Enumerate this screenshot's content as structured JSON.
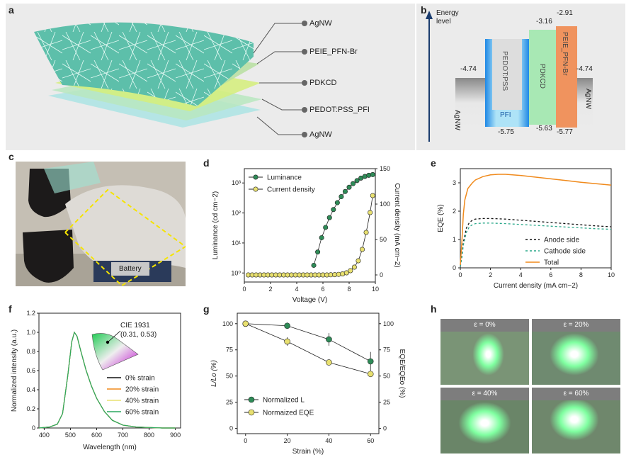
{
  "panels": {
    "a": "a",
    "b": "b",
    "c": "c",
    "d": "d",
    "e": "e",
    "f": "f",
    "g": "g",
    "h": "h"
  },
  "panel_a": {
    "layers": [
      "AgNW",
      "PEIE_PFN-Br",
      "PDKCD",
      "PEDOT:PSS_PFI",
      "AgNW"
    ]
  },
  "panel_b": {
    "axis_label_1": "Energy",
    "axis_label_2": "level",
    "left_electrode": "AgNW",
    "right_electrode": "AgNW",
    "left_wf": "-4.74",
    "right_wf": "-4.74",
    "htl": "PEDOT:PSS",
    "htl_sub": "PFI",
    "htl_bottom": "-5.75",
    "eml": "PDKCD",
    "eml_top": "-3.16",
    "eml_bottom": "-5.63",
    "etl": "PEIE_PFN-Br",
    "etl_top": "-2.91",
    "etl_bottom": "-5.77"
  },
  "panel_c": {
    "battery_label": "Battery"
  },
  "panel_h": {
    "strain_labels": [
      "ε = 0%",
      "ε = 20%",
      "ε = 40%",
      "ε = 60%"
    ]
  },
  "chart_data": [
    {
      "id": "d",
      "type": "scatter",
      "xlabel": "Voltage (V)",
      "ylabel": "Luminance (cd cm−2)",
      "y2label": "Current density (mA cm−2)",
      "xlim": [
        0,
        10
      ],
      "ylim_log": [
        0.5,
        3000
      ],
      "y2lim": [
        -10,
        150
      ],
      "xticks": [
        0,
        2,
        4,
        6,
        8,
        10
      ],
      "yticks": [
        "10⁰",
        "10¹",
        "10²",
        "10³"
      ],
      "y2ticks": [
        0,
        50,
        100,
        150
      ],
      "legend": [
        "Luminance",
        "Current density"
      ],
      "series": [
        {
          "name": "Luminance",
          "color": "#2e8b57",
          "x": [
            5.3,
            5.6,
            5.9,
            6.2,
            6.5,
            6.8,
            7.1,
            7.4,
            7.7,
            8.0,
            8.3,
            8.6,
            8.9,
            9.2,
            9.5,
            9.8
          ],
          "y": [
            1.8,
            5,
            15,
            33,
            70,
            130,
            220,
            350,
            520,
            720,
            950,
            1200,
            1450,
            1650,
            1800,
            1900
          ]
        },
        {
          "name": "Current density",
          "color": "#e8e070",
          "x": [
            0.3,
            0.6,
            0.9,
            1.2,
            1.5,
            1.8,
            2.1,
            2.4,
            2.7,
            3.0,
            3.3,
            3.6,
            3.9,
            4.2,
            4.5,
            4.8,
            5.1,
            5.4,
            5.7,
            6.0,
            6.3,
            6.6,
            6.9,
            7.2,
            7.5,
            7.8,
            8.1,
            8.4,
            8.7,
            9.0,
            9.3,
            9.6,
            9.8
          ],
          "y": [
            0,
            0,
            0,
            0,
            0,
            0,
            0,
            0,
            0,
            0,
            0,
            0,
            0,
            0,
            0,
            0,
            0,
            0,
            0,
            0,
            0,
            0.2,
            0.4,
            0.8,
            1.5,
            3,
            6,
            11,
            20,
            36,
            60,
            88,
            112
          ]
        }
      ]
    },
    {
      "id": "e",
      "type": "line",
      "xlabel": "Current density (mA cm−2)",
      "ylabel": "EQE (%)",
      "xlim": [
        0,
        10
      ],
      "ylim": [
        0,
        3.5
      ],
      "xticks": [
        0,
        2,
        4,
        6,
        8,
        10
      ],
      "yticks": [
        0,
        1,
        2,
        3
      ],
      "legend": [
        "Anode side",
        "Cathode side",
        "Total"
      ],
      "series": [
        {
          "name": "Anode side",
          "color": "#111111",
          "dash": "3,3",
          "x": [
            0,
            0.1,
            0.2,
            0.4,
            0.6,
            0.8,
            1,
            1.5,
            2,
            3,
            4,
            5,
            6,
            7,
            8,
            9,
            10
          ],
          "y": [
            0.05,
            0.4,
            0.9,
            1.4,
            1.6,
            1.68,
            1.72,
            1.74,
            1.74,
            1.72,
            1.68,
            1.64,
            1.6,
            1.56,
            1.52,
            1.48,
            1.45
          ]
        },
        {
          "name": "Cathode side",
          "color": "#2aa88a",
          "dash": "3,3",
          "x": [
            0,
            0.1,
            0.2,
            0.4,
            0.6,
            0.8,
            1,
            1.5,
            2,
            3,
            4,
            5,
            6,
            7,
            8,
            9,
            10
          ],
          "y": [
            0.05,
            0.35,
            0.8,
            1.25,
            1.45,
            1.52,
            1.56,
            1.58,
            1.58,
            1.56,
            1.53,
            1.5,
            1.47,
            1.44,
            1.41,
            1.38,
            1.36
          ]
        },
        {
          "name": "Total",
          "color": "#f08a1c",
          "dash": "",
          "x": [
            0,
            0.1,
            0.2,
            0.3,
            0.5,
            0.8,
            1,
            1.5,
            2,
            2.5,
            3,
            4,
            5,
            6,
            7,
            8,
            9,
            10
          ],
          "y": [
            0.1,
            0.9,
            1.9,
            2.4,
            2.8,
            3.0,
            3.1,
            3.22,
            3.28,
            3.3,
            3.3,
            3.26,
            3.2,
            3.14,
            3.08,
            3.02,
            2.97,
            2.92
          ]
        }
      ]
    },
    {
      "id": "f",
      "type": "line",
      "xlabel": "Wavelength (nm)",
      "ylabel": "Normalized intensity (a.u.)",
      "xlim": [
        380,
        920
      ],
      "ylim": [
        0,
        1.2
      ],
      "xticks": [
        400,
        500,
        600,
        700,
        800,
        900
      ],
      "yticks": [
        0,
        0.2,
        0.4,
        0.6,
        0.8,
        1.0,
        1.2
      ],
      "legend": [
        "0% strain",
        "20% strain",
        "40% strain",
        "60% strain"
      ],
      "cie_label": "CIE 1931",
      "cie_coords": "(0.31, 0.53)",
      "series": [
        {
          "name": "0% strain",
          "color": "#111111",
          "x": [
            380,
            420,
            450,
            470,
            490,
            505,
            515,
            525,
            540,
            560,
            580,
            600,
            630,
            660,
            700,
            750,
            800,
            850,
            900
          ],
          "y": [
            0,
            0.01,
            0.04,
            0.15,
            0.55,
            0.9,
            1.0,
            0.96,
            0.8,
            0.6,
            0.44,
            0.31,
            0.17,
            0.08,
            0.03,
            0.01,
            0.005,
            0,
            0
          ]
        },
        {
          "name": "20% strain",
          "color": "#f08a1c",
          "x": [
            380,
            420,
            450,
            470,
            490,
            505,
            515,
            525,
            540,
            560,
            580,
            600,
            630,
            660,
            700,
            750,
            800,
            850,
            900
          ],
          "y": [
            0,
            0.01,
            0.04,
            0.15,
            0.55,
            0.9,
            1.0,
            0.96,
            0.8,
            0.6,
            0.44,
            0.31,
            0.17,
            0.08,
            0.03,
            0.01,
            0.005,
            0,
            0
          ]
        },
        {
          "name": "40% strain",
          "color": "#e8e070",
          "x": [
            380,
            420,
            450,
            470,
            490,
            505,
            515,
            525,
            540,
            560,
            580,
            600,
            630,
            660,
            700,
            750,
            800,
            850,
            900
          ],
          "y": [
            0,
            0.01,
            0.04,
            0.15,
            0.55,
            0.9,
            1.0,
            0.96,
            0.8,
            0.6,
            0.44,
            0.31,
            0.17,
            0.08,
            0.03,
            0.01,
            0.005,
            0,
            0
          ]
        },
        {
          "name": "60% strain",
          "color": "#2aa860",
          "x": [
            380,
            420,
            450,
            470,
            490,
            505,
            515,
            525,
            540,
            560,
            580,
            600,
            630,
            660,
            700,
            750,
            800,
            850,
            900
          ],
          "y": [
            0,
            0.01,
            0.04,
            0.15,
            0.55,
            0.9,
            1.0,
            0.96,
            0.8,
            0.6,
            0.44,
            0.31,
            0.17,
            0.08,
            0.03,
            0.01,
            0.005,
            0,
            0
          ]
        }
      ]
    },
    {
      "id": "g",
      "type": "scatter",
      "xlabel": "Strain (%)",
      "ylabel": "L/Lo (%)",
      "y2label": "EQE/EQEo (%)",
      "xlim": [
        -4,
        64
      ],
      "ylim": [
        -5,
        110
      ],
      "xticks": [
        0,
        20,
        40,
        60
      ],
      "yticks": [
        0,
        25,
        50,
        75,
        100
      ],
      "y2ticks": [
        0,
        25,
        50,
        75,
        100
      ],
      "legend": [
        "Normalized L",
        "Normaized EQE"
      ],
      "series": [
        {
          "name": "Normalized L",
          "color": "#2e8b57",
          "x": [
            0,
            20,
            40,
            60
          ],
          "y": [
            100,
            98,
            85,
            64
          ],
          "err": [
            0,
            3,
            6,
            9
          ]
        },
        {
          "name": "Normaized EQE",
          "color": "#e8e070",
          "x": [
            0,
            20,
            40,
            60
          ],
          "y": [
            100,
            83,
            63,
            52
          ],
          "err": [
            0,
            4,
            2,
            3
          ]
        }
      ]
    }
  ]
}
